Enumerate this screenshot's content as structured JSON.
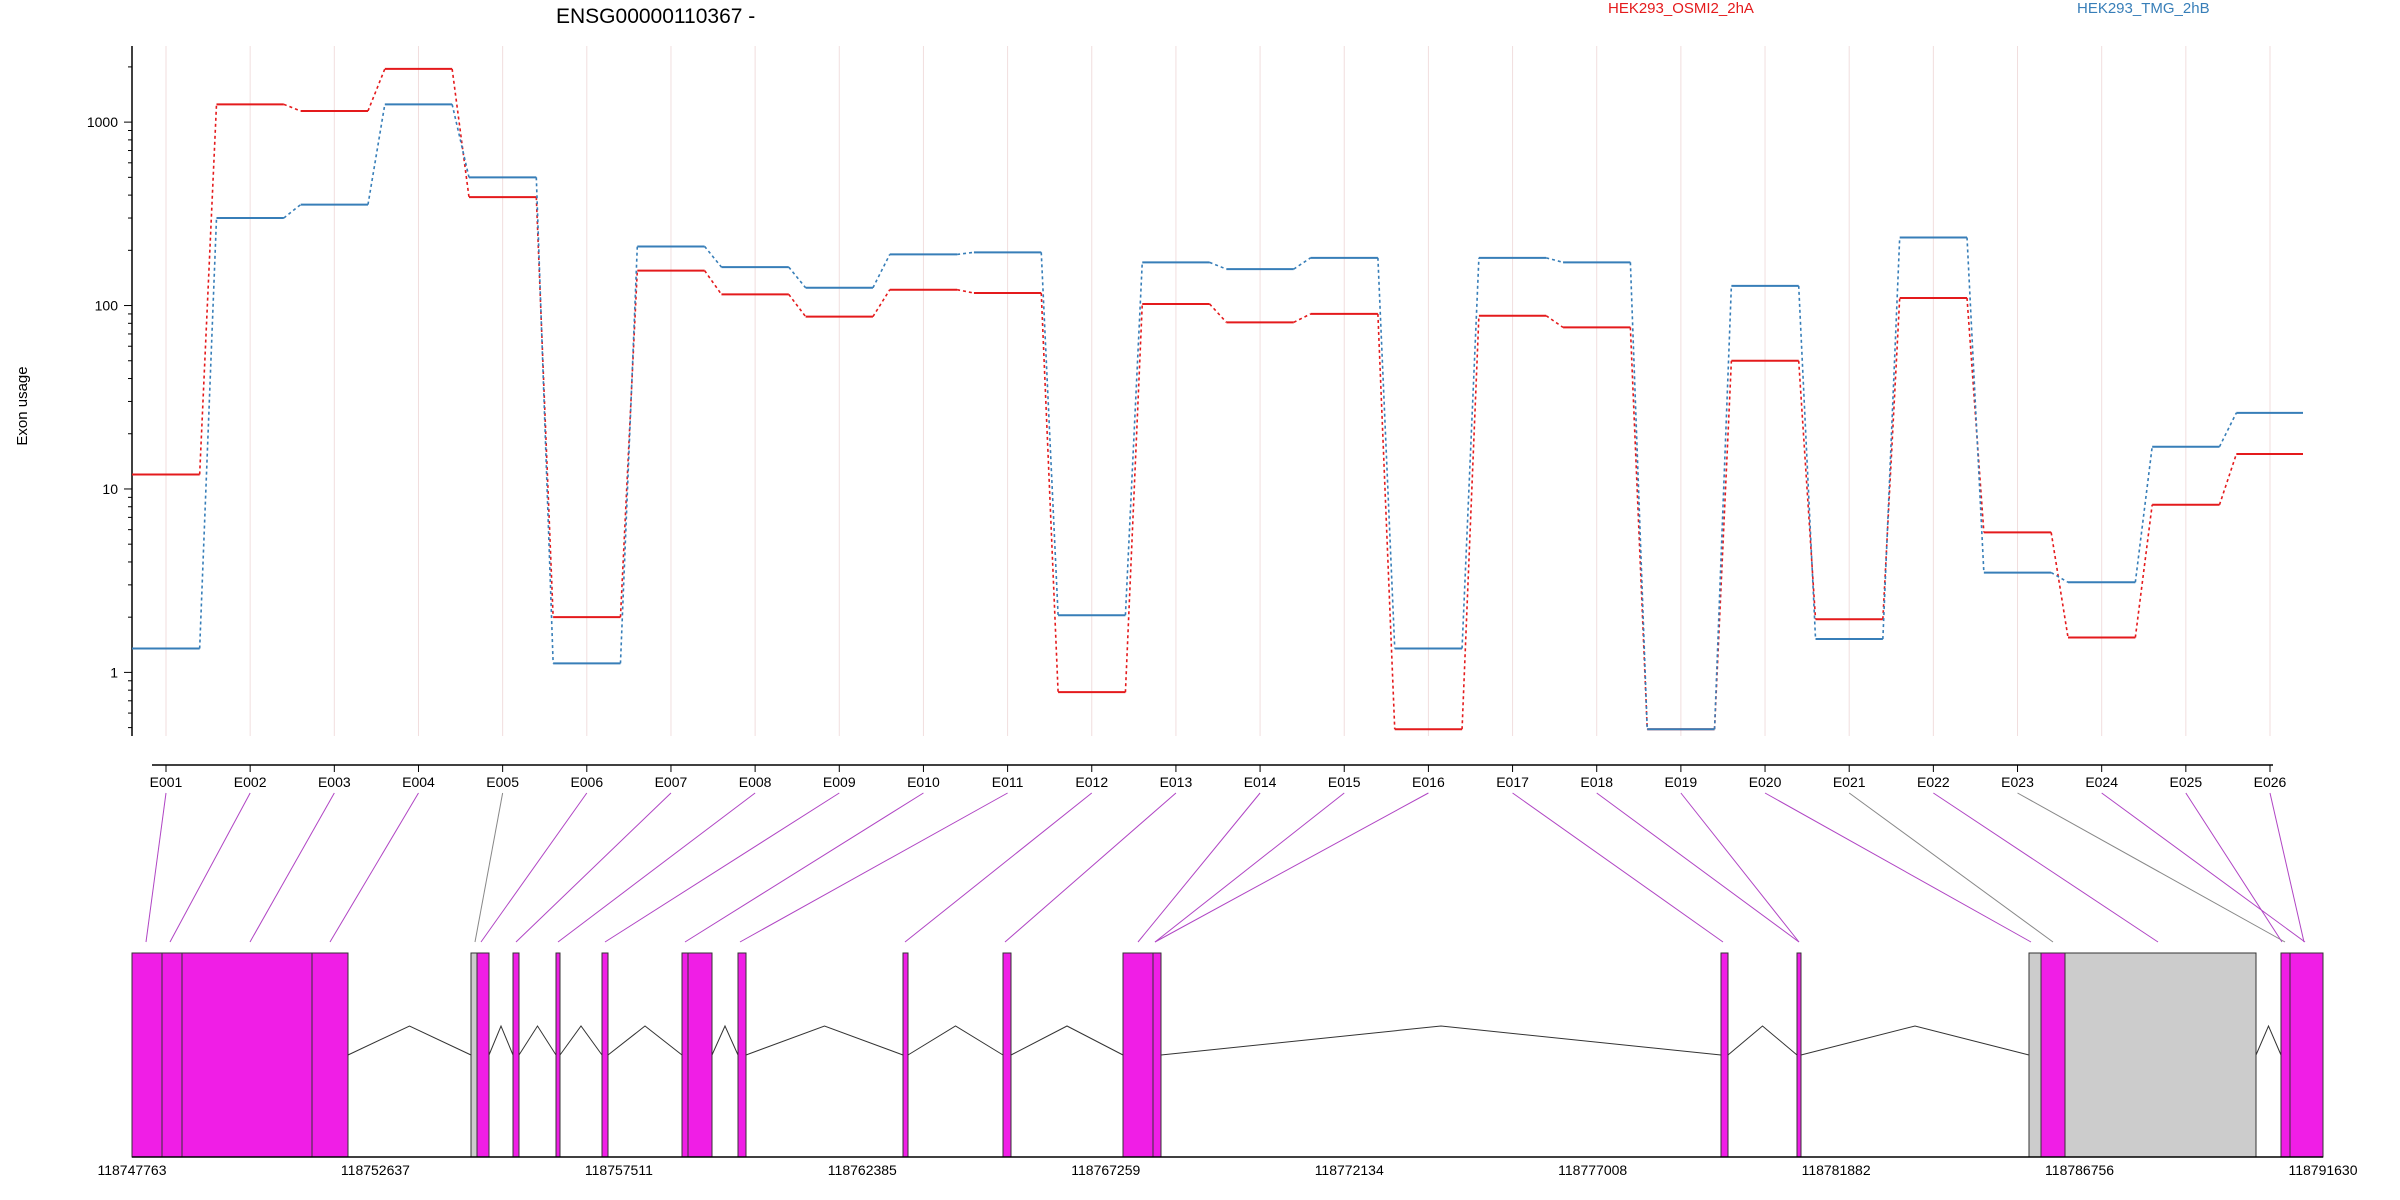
{
  "chart_data": {
    "type": "line",
    "title": "ENSG00000110367 -",
    "xlabel": "",
    "ylabel": "Exon usage",
    "y_scale": "log",
    "ylim": [
      0.45,
      2600
    ],
    "y_ticks": [
      1,
      10,
      100,
      1000
    ],
    "y_tick_labels": [
      "1",
      "10",
      "100",
      "1000"
    ],
    "categories": [
      "E001",
      "E002",
      "E003",
      "E004",
      "E005",
      "E006",
      "E007",
      "E008",
      "E009",
      "E010",
      "E011",
      "E012",
      "E013",
      "E014",
      "E015",
      "E016",
      "E017",
      "E018",
      "E019",
      "E020",
      "E021",
      "E022",
      "E023",
      "E024",
      "E025",
      "E026"
    ],
    "series": [
      {
        "name": "HEK293_OSMI2_2hA",
        "color": "#e41a1c",
        "values": [
          12,
          1250,
          1150,
          1950,
          390,
          2.0,
          155,
          115,
          87,
          122,
          117,
          0.78,
          102,
          81,
          90,
          0.49,
          88,
          76,
          0.49,
          50,
          1.95,
          110,
          5.8,
          1.55,
          8.2,
          15.5
        ]
      },
      {
        "name": "HEK293_TMG_2hB",
        "color": "#377eb8",
        "values": [
          1.35,
          300,
          355,
          1250,
          500,
          1.12,
          210,
          162,
          125,
          190,
          195,
          2.05,
          172,
          158,
          182,
          1.35,
          182,
          172,
          0.49,
          128,
          1.52,
          235,
          3.5,
          3.1,
          17,
          26
        ]
      }
    ],
    "grid": true,
    "legend_position": "top",
    "gene_model": {
      "coordinate_ticks": [
        "118747763",
        "118752637",
        "118757511",
        "118762385",
        "118767259",
        "118772134",
        "118777008",
        "118781882",
        "118786756",
        "118791630"
      ],
      "highlight_color": "#f01ee6",
      "inactive_color": "#cccccc"
    }
  }
}
